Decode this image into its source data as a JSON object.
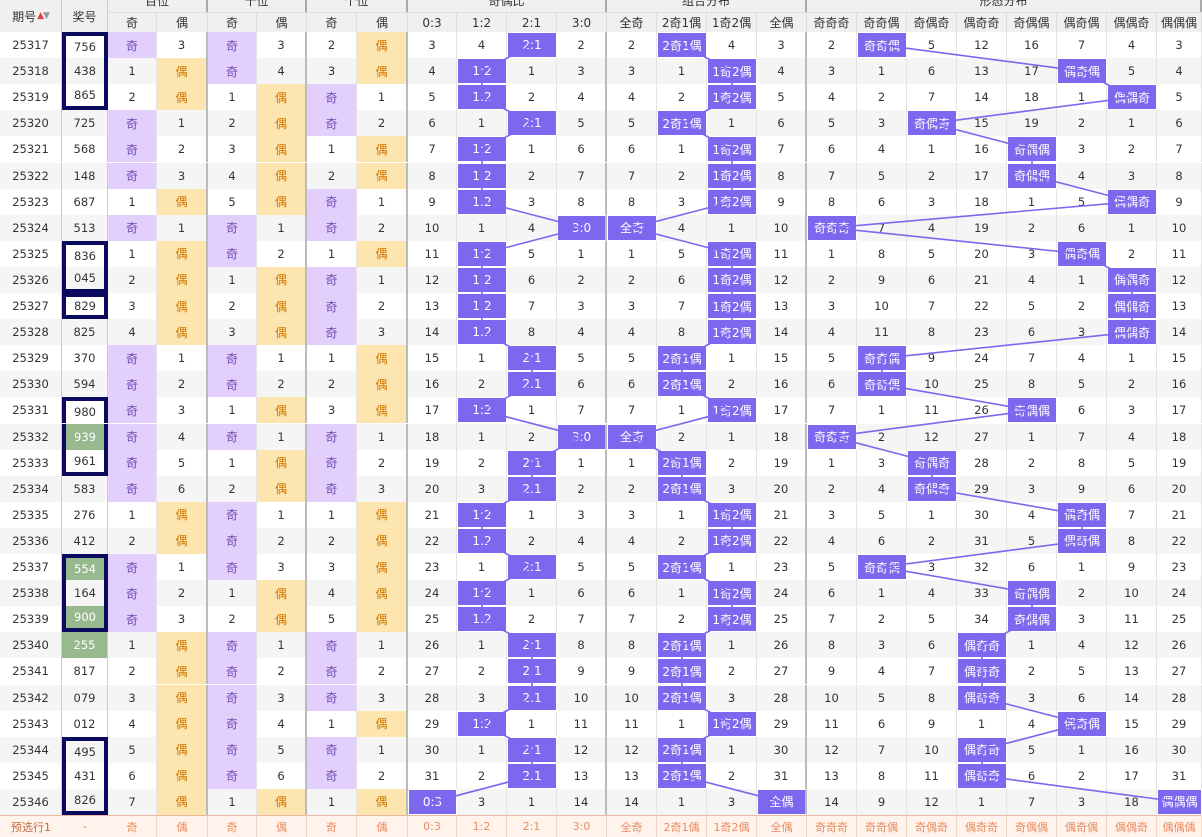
{
  "headers": {
    "issue": "期号",
    "prize": "奖号",
    "groups": [
      "百位",
      "十位",
      "个位",
      "奇偶比",
      "组合分布",
      "形态分布"
    ],
    "sub": [
      "奇",
      "偶",
      "奇",
      "偶",
      "奇",
      "偶",
      "0:3",
      "1:2",
      "2:1",
      "3:0",
      "全奇",
      "2奇1偶",
      "1奇2偶",
      "全偶",
      "奇奇奇",
      "奇奇偶",
      "奇偶奇",
      "偶奇奇",
      "奇偶偶",
      "偶奇偶",
      "偶偶奇",
      "偶偶偶"
    ]
  },
  "rows": [
    {
      "issue": "25317",
      "prize": "756",
      "box": "top",
      "cells": [
        "奇",
        "3",
        "奇",
        "3",
        "2",
        "偶",
        "3",
        "4",
        "2:1",
        "2",
        "2",
        "2奇1偶",
        "4",
        "3",
        "2",
        "奇奇偶",
        "5",
        "12",
        "16",
        "7",
        "4",
        "3"
      ]
    },
    {
      "issue": "25318",
      "prize": "438",
      "box": "mid",
      "cells": [
        "1",
        "偶",
        "奇",
        "4",
        "3",
        "偶",
        "4",
        "1:2",
        "1",
        "3",
        "3",
        "1",
        "1奇2偶",
        "4",
        "3",
        "1",
        "6",
        "13",
        "17",
        "偶奇偶",
        "5",
        "4"
      ]
    },
    {
      "issue": "25319",
      "prize": "865",
      "box": "bot",
      "cells": [
        "2",
        "偶",
        "1",
        "偶",
        "奇",
        "1",
        "5",
        "1:2",
        "2",
        "4",
        "4",
        "2",
        "1奇2偶",
        "5",
        "4",
        "2",
        "7",
        "14",
        "18",
        "1",
        "偶偶奇",
        "5"
      ]
    },
    {
      "issue": "25320",
      "prize": "725",
      "box": "",
      "cells": [
        "奇",
        "1",
        "2",
        "偶",
        "奇",
        "2",
        "6",
        "1",
        "2:1",
        "5",
        "5",
        "2奇1偶",
        "1",
        "6",
        "5",
        "3",
        "奇偶奇",
        "15",
        "19",
        "2",
        "1",
        "6"
      ]
    },
    {
      "issue": "25321",
      "prize": "568",
      "box": "",
      "cells": [
        "奇",
        "2",
        "3",
        "偶",
        "1",
        "偶",
        "7",
        "1:2",
        "1",
        "6",
        "6",
        "1",
        "1奇2偶",
        "7",
        "6",
        "4",
        "1",
        "16",
        "奇偶偶",
        "3",
        "2",
        "7"
      ]
    },
    {
      "issue": "25322",
      "prize": "148",
      "box": "",
      "cells": [
        "奇",
        "3",
        "4",
        "偶",
        "2",
        "偶",
        "8",
        "1:2",
        "2",
        "7",
        "7",
        "2",
        "1奇2偶",
        "8",
        "7",
        "5",
        "2",
        "17",
        "奇偶偶",
        "4",
        "3",
        "8"
      ]
    },
    {
      "issue": "25323",
      "prize": "687",
      "box": "",
      "cells": [
        "1",
        "偶",
        "5",
        "偶",
        "奇",
        "1",
        "9",
        "1:2",
        "3",
        "8",
        "8",
        "3",
        "1奇2偶",
        "9",
        "8",
        "6",
        "3",
        "18",
        "1",
        "5",
        "偶偶奇",
        "9"
      ]
    },
    {
      "issue": "25324",
      "prize": "513",
      "box": "",
      "cells": [
        "奇",
        "1",
        "奇",
        "1",
        "奇",
        "2",
        "10",
        "1",
        "4",
        "3:0",
        "全奇",
        "4",
        "1",
        "10",
        "奇奇奇",
        "7",
        "4",
        "19",
        "2",
        "6",
        "1",
        "10"
      ]
    },
    {
      "issue": "25325",
      "prize": "836",
      "box": "top",
      "cells": [
        "1",
        "偶",
        "奇",
        "2",
        "1",
        "偶",
        "11",
        "1:2",
        "5",
        "1",
        "1",
        "5",
        "1奇2偶",
        "11",
        "1",
        "8",
        "5",
        "20",
        "3",
        "偶奇偶",
        "2",
        "11"
      ]
    },
    {
      "issue": "25326",
      "prize": "045",
      "box": "bot",
      "cells": [
        "2",
        "偶",
        "1",
        "偶",
        "奇",
        "1",
        "12",
        "1:2",
        "6",
        "2",
        "2",
        "6",
        "1奇2偶",
        "12",
        "2",
        "9",
        "6",
        "21",
        "4",
        "1",
        "偶偶奇",
        "12"
      ]
    },
    {
      "issue": "25327",
      "prize": "829",
      "box": "single",
      "cells": [
        "3",
        "偶",
        "2",
        "偶",
        "奇",
        "2",
        "13",
        "1:2",
        "7",
        "3",
        "3",
        "7",
        "1奇2偶",
        "13",
        "3",
        "10",
        "7",
        "22",
        "5",
        "2",
        "偶偶奇",
        "13"
      ]
    },
    {
      "issue": "25328",
      "prize": "825",
      "box": "",
      "cells": [
        "4",
        "偶",
        "3",
        "偶",
        "奇",
        "3",
        "14",
        "1:2",
        "8",
        "4",
        "4",
        "8",
        "1奇2偶",
        "14",
        "4",
        "11",
        "8",
        "23",
        "6",
        "3",
        "偶偶奇",
        "14"
      ]
    },
    {
      "issue": "25329",
      "prize": "370",
      "box": "",
      "cells": [
        "奇",
        "1",
        "奇",
        "1",
        "1",
        "偶",
        "15",
        "1",
        "2:1",
        "5",
        "5",
        "2奇1偶",
        "1",
        "15",
        "5",
        "奇奇偶",
        "9",
        "24",
        "7",
        "4",
        "1",
        "15"
      ]
    },
    {
      "issue": "25330",
      "prize": "594",
      "box": "",
      "cells": [
        "奇",
        "2",
        "奇",
        "2",
        "2",
        "偶",
        "16",
        "2",
        "2:1",
        "6",
        "6",
        "2奇1偶",
        "2",
        "16",
        "6",
        "奇奇偶",
        "10",
        "25",
        "8",
        "5",
        "2",
        "16"
      ]
    },
    {
      "issue": "25331",
      "prize": "980",
      "box": "top",
      "cells": [
        "奇",
        "3",
        "1",
        "偶",
        "3",
        "偶",
        "17",
        "1:2",
        "1",
        "7",
        "7",
        "1",
        "1奇2偶",
        "17",
        "7",
        "1",
        "11",
        "26",
        "奇偶偶",
        "6",
        "3",
        "17"
      ]
    },
    {
      "issue": "25332",
      "prize": "939",
      "box": "mid",
      "green": true,
      "cells": [
        "奇",
        "4",
        "奇",
        "1",
        "奇",
        "1",
        "18",
        "1",
        "2",
        "3:0",
        "全奇",
        "2",
        "1",
        "18",
        "奇奇奇",
        "2",
        "12",
        "27",
        "1",
        "7",
        "4",
        "18"
      ]
    },
    {
      "issue": "25333",
      "prize": "961",
      "box": "bot",
      "cells": [
        "奇",
        "5",
        "1",
        "偶",
        "奇",
        "2",
        "19",
        "2",
        "2:1",
        "1",
        "1",
        "2奇1偶",
        "2",
        "19",
        "1",
        "3",
        "奇偶奇",
        "28",
        "2",
        "8",
        "5",
        "19"
      ]
    },
    {
      "issue": "25334",
      "prize": "583",
      "box": "",
      "cells": [
        "奇",
        "6",
        "2",
        "偶",
        "奇",
        "3",
        "20",
        "3",
        "2:1",
        "2",
        "2",
        "2奇1偶",
        "3",
        "20",
        "2",
        "4",
        "奇偶奇",
        "29",
        "3",
        "9",
        "6",
        "20"
      ]
    },
    {
      "issue": "25335",
      "prize": "276",
      "box": "",
      "cells": [
        "1",
        "偶",
        "奇",
        "1",
        "1",
        "偶",
        "21",
        "1:2",
        "1",
        "3",
        "3",
        "1",
        "1奇2偶",
        "21",
        "3",
        "5",
        "1",
        "30",
        "4",
        "偶奇偶",
        "7",
        "21"
      ]
    },
    {
      "issue": "25336",
      "prize": "412",
      "box": "",
      "cells": [
        "2",
        "偶",
        "奇",
        "2",
        "2",
        "偶",
        "22",
        "1:2",
        "2",
        "4",
        "4",
        "2",
        "1奇2偶",
        "22",
        "4",
        "6",
        "2",
        "31",
        "5",
        "偶奇偶",
        "8",
        "22"
      ]
    },
    {
      "issue": "25337",
      "prize": "554",
      "box": "top",
      "green": true,
      "cells": [
        "奇",
        "1",
        "奇",
        "3",
        "3",
        "偶",
        "23",
        "1",
        "2:1",
        "5",
        "5",
        "2奇1偶",
        "1",
        "23",
        "5",
        "奇奇偶",
        "3",
        "32",
        "6",
        "1",
        "9",
        "23"
      ]
    },
    {
      "issue": "25338",
      "prize": "164",
      "box": "mid",
      "cells": [
        "奇",
        "2",
        "1",
        "偶",
        "4",
        "偶",
        "24",
        "1:2",
        "1",
        "6",
        "6",
        "1",
        "1奇2偶",
        "24",
        "6",
        "1",
        "4",
        "33",
        "奇偶偶",
        "2",
        "10",
        "24"
      ]
    },
    {
      "issue": "25339",
      "prize": "900",
      "box": "bot",
      "green": true,
      "cells": [
        "奇",
        "3",
        "2",
        "偶",
        "5",
        "偶",
        "25",
        "1:2",
        "2",
        "7",
        "7",
        "2",
        "1奇2偶",
        "25",
        "7",
        "2",
        "5",
        "34",
        "奇偶偶",
        "3",
        "11",
        "25"
      ]
    },
    {
      "issue": "25340",
      "prize": "255",
      "box": "",
      "green": true,
      "cells": [
        "1",
        "偶",
        "奇",
        "1",
        "奇",
        "1",
        "26",
        "1",
        "2:1",
        "8",
        "8",
        "2奇1偶",
        "1",
        "26",
        "8",
        "3",
        "6",
        "偶奇奇",
        "1",
        "4",
        "12",
        "26"
      ]
    },
    {
      "issue": "25341",
      "prize": "817",
      "box": "",
      "cells": [
        "2",
        "偶",
        "奇",
        "2",
        "奇",
        "2",
        "27",
        "2",
        "2:1",
        "9",
        "9",
        "2奇1偶",
        "2",
        "27",
        "9",
        "4",
        "7",
        "偶奇奇",
        "2",
        "5",
        "13",
        "27"
      ]
    },
    {
      "issue": "25342",
      "prize": "079",
      "box": "",
      "cells": [
        "3",
        "偶",
        "奇",
        "3",
        "奇",
        "3",
        "28",
        "3",
        "2:1",
        "10",
        "10",
        "2奇1偶",
        "3",
        "28",
        "10",
        "5",
        "8",
        "偶奇奇",
        "3",
        "6",
        "14",
        "28"
      ]
    },
    {
      "issue": "25343",
      "prize": "012",
      "box": "",
      "cells": [
        "4",
        "偶",
        "奇",
        "4",
        "1",
        "偶",
        "29",
        "1:2",
        "1",
        "11",
        "11",
        "1",
        "1奇2偶",
        "29",
        "11",
        "6",
        "9",
        "1",
        "4",
        "偶奇偶",
        "15",
        "29"
      ]
    },
    {
      "issue": "25344",
      "prize": "495",
      "box": "top",
      "cells": [
        "5",
        "偶",
        "奇",
        "5",
        "奇",
        "1",
        "30",
        "1",
        "2:1",
        "12",
        "12",
        "2奇1偶",
        "1",
        "30",
        "12",
        "7",
        "10",
        "偶奇奇",
        "5",
        "1",
        "16",
        "30"
      ]
    },
    {
      "issue": "25345",
      "prize": "431",
      "box": "mid",
      "cells": [
        "6",
        "偶",
        "奇",
        "6",
        "奇",
        "2",
        "31",
        "2",
        "2:1",
        "13",
        "13",
        "2奇1偶",
        "2",
        "31",
        "13",
        "8",
        "11",
        "偶奇奇",
        "6",
        "2",
        "17",
        "31"
      ]
    },
    {
      "issue": "25346",
      "prize": "826",
      "box": "bot",
      "cells": [
        "7",
        "偶",
        "1",
        "偶",
        "1",
        "偶",
        "0:3",
        "3",
        "1",
        "14",
        "14",
        "1",
        "3",
        "全偶",
        "14",
        "9",
        "12",
        "1",
        "7",
        "3",
        "18",
        "偶偶偶"
      ]
    }
  ],
  "preselect": {
    "label": "预选行1",
    "prize": "-",
    "cells": [
      "奇",
      "偶",
      "奇",
      "偶",
      "奇",
      "偶",
      "0:3",
      "1:2",
      "2:1",
      "3:0",
      "全奇",
      "2奇1偶",
      "1奇2偶",
      "全偶",
      "奇奇奇",
      "奇奇偶",
      "奇偶奇",
      "偶奇奇",
      "奇偶偶",
      "偶奇偶",
      "偶偶奇",
      "偶偶偶"
    ]
  },
  "colors": {
    "accent": "#7b68ee",
    "odd_bg": "#e2cffb",
    "even_bg": "#fde5b0",
    "green": "#98b98e",
    "border_box": "#0a0a5f"
  }
}
